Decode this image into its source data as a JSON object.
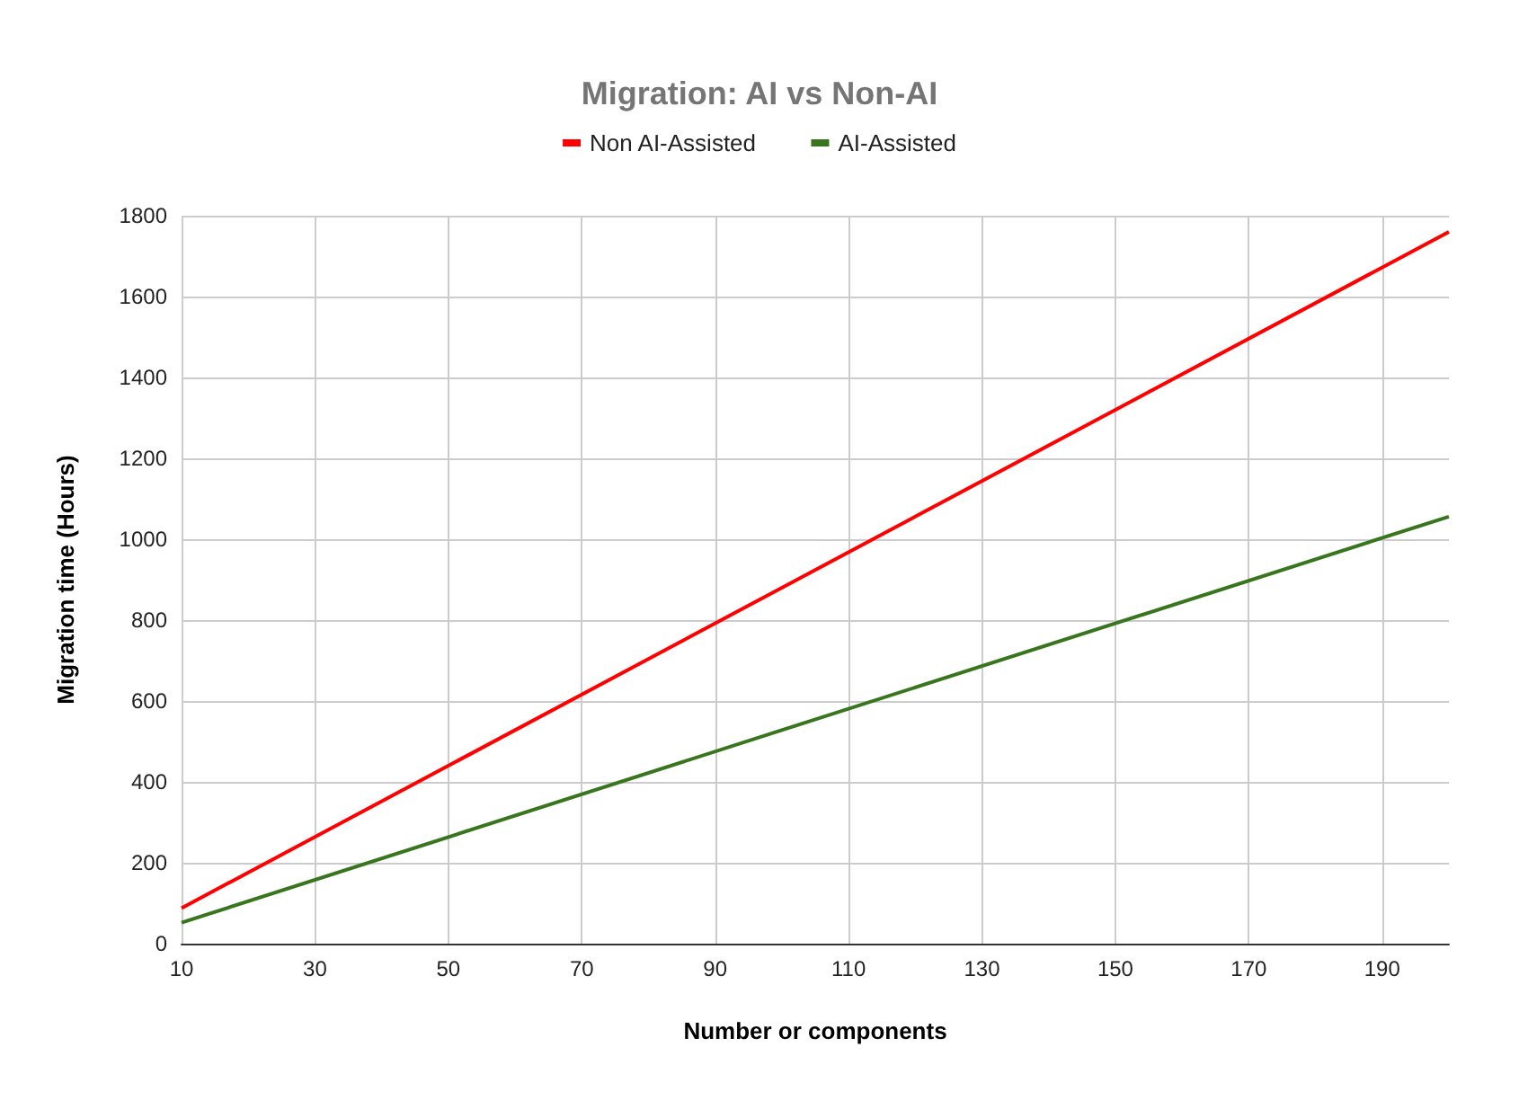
{
  "chart_data": {
    "type": "line",
    "title": "Migration: AI vs Non-AI",
    "xlabel": "Number or components",
    "ylabel": "Migration time (Hours)",
    "x": [
      10,
      100,
      200
    ],
    "series": [
      {
        "name": "Non AI-Assisted",
        "color": "#ff0000",
        "values": [
          88,
          880,
          1760
        ]
      },
      {
        "name": "AI-Assisted",
        "color": "#38761d",
        "values": [
          52,
          528,
          1056
        ]
      }
    ],
    "xlim": [
      10,
      200
    ],
    "xticks": [
      10,
      30,
      50,
      70,
      90,
      110,
      130,
      150,
      170,
      190
    ],
    "ylim": [
      0,
      1800
    ],
    "yticks": [
      0,
      200,
      400,
      600,
      800,
      1000,
      1200,
      1400,
      1600,
      1800
    ],
    "grid": true,
    "legend": "top",
    "marker": "none",
    "line_style": "solid"
  }
}
